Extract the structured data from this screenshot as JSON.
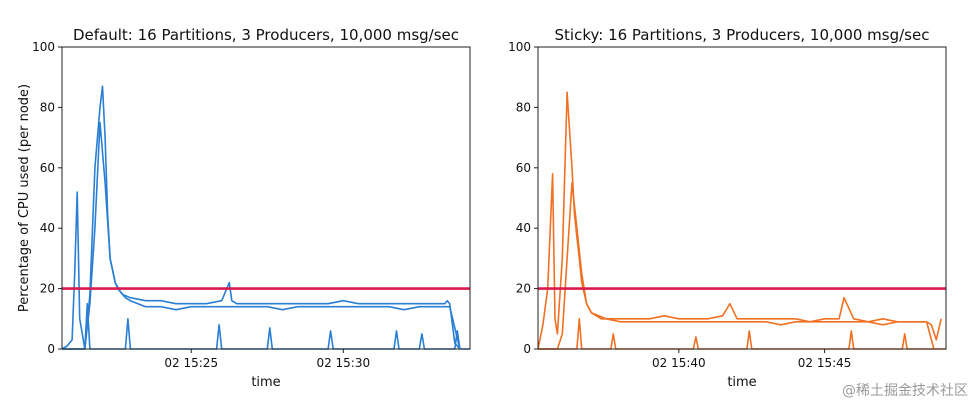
{
  "colors": {
    "threshold": "#d81b4f"
  },
  "watermark": "@稀土掘金技术社区",
  "shared_ylabel": "Percentage of CPU used (per node)",
  "chart_data": [
    {
      "type": "line",
      "title": "Default: 16 Partitions, 3 Producers, 10,000 msg/sec",
      "xlabel": "time",
      "ylabel": "Percentage of CPU used (per node)",
      "ylim": [
        0,
        100
      ],
      "yticks": [
        0,
        20,
        40,
        60,
        80,
        100
      ],
      "xlim": [
        "02 15:20:45",
        "02 15:34:10"
      ],
      "xticks": [
        "02 15:25",
        "02 15:30"
      ],
      "color": "#2a7fd4",
      "threshold": 20,
      "series": [
        {
          "x": [
            "02 15:20:45",
            "02 15:20:55",
            "02 15:21:05",
            "02 15:21:10",
            "02 15:21:15",
            "02 15:21:20",
            "02 15:21:25",
            "02 15:21:30",
            "02 15:21:40",
            "02 15:21:50",
            "02 15:22:00",
            "02 15:22:05",
            "02 15:22:10",
            "02 15:22:15",
            "02 15:22:20",
            "02 15:22:25",
            "02 15:22:30",
            "02 15:22:35",
            "02 15:22:45",
            "02 15:23:00",
            "02 15:23:30",
            "02 15:24:00",
            "02 15:24:30",
            "02 15:25:00",
            "02 15:25:30",
            "02 15:26:00",
            "02 15:26:15",
            "02 15:26:20",
            "02 15:26:30",
            "02 15:27:00",
            "02 15:27:30",
            "02 15:28:00",
            "02 15:28:30",
            "02 15:29:00",
            "02 15:29:30",
            "02 15:30:00",
            "02 15:30:30",
            "02 15:31:00",
            "02 15:31:30",
            "02 15:32:00",
            "02 15:32:30",
            "02 15:33:00",
            "02 15:33:20",
            "02 15:33:25",
            "02 15:33:30",
            "02 15:33:40",
            "02 15:33:50"
          ],
          "y": [
            0,
            1,
            3,
            25,
            52,
            10,
            5,
            0,
            18,
            60,
            80,
            87,
            70,
            45,
            30,
            26,
            22,
            20,
            18,
            17,
            16,
            16,
            15,
            15,
            15,
            16,
            22,
            16,
            15,
            15,
            15,
            15,
            15,
            15,
            15,
            16,
            15,
            15,
            15,
            15,
            15,
            15,
            15,
            16,
            15,
            2,
            0
          ]
        },
        {
          "x": [
            "02 15:20:45",
            "02 15:21:00",
            "02 15:21:30",
            "02 15:21:40",
            "02 15:21:50",
            "02 15:22:00",
            "02 15:22:10",
            "02 15:22:20",
            "02 15:22:30",
            "02 15:22:40",
            "02 15:22:50",
            "02 15:23:00",
            "02 15:23:30",
            "02 15:24:00",
            "02 15:24:30",
            "02 15:25:00",
            "02 15:25:30",
            "02 15:26:00",
            "02 15:26:30",
            "02 15:27:00",
            "02 15:27:30",
            "02 15:28:00",
            "02 15:28:30",
            "02 15:29:00",
            "02 15:29:30",
            "02 15:30:00",
            "02 15:30:30",
            "02 15:31:00",
            "02 15:31:30",
            "02 15:32:00",
            "02 15:32:30",
            "02 15:33:00",
            "02 15:33:30",
            "02 15:33:50"
          ],
          "y": [
            0,
            0,
            0,
            15,
            40,
            75,
            55,
            30,
            22,
            19,
            17,
            16,
            14,
            14,
            13,
            14,
            14,
            14,
            14,
            14,
            14,
            13,
            14,
            14,
            14,
            14,
            14,
            14,
            14,
            13,
            14,
            14,
            14,
            0
          ]
        },
        {
          "x": [
            "02 15:20:45",
            "02 15:21:30",
            "02 15:21:35",
            "02 15:21:40",
            "02 15:22:30",
            "02 15:22:50",
            "02 15:22:55",
            "02 15:23:00",
            "02 15:25:00",
            "02 15:25:50",
            "02 15:25:55",
            "02 15:26:00",
            "02 15:27:30",
            "02 15:27:35",
            "02 15:27:40",
            "02 15:29:30",
            "02 15:29:35",
            "02 15:29:40",
            "02 15:31:40",
            "02 15:31:45",
            "02 15:31:50",
            "02 15:32:30",
            "02 15:32:35",
            "02 15:32:40",
            "02 15:33:40",
            "02 15:33:45",
            "02 15:33:50",
            "02 15:34:10"
          ],
          "y": [
            0,
            0,
            15,
            0,
            0,
            0,
            10,
            0,
            0,
            0,
            8,
            0,
            0,
            7,
            0,
            0,
            6,
            0,
            0,
            6,
            0,
            0,
            5,
            0,
            0,
            6,
            0,
            0
          ]
        }
      ]
    },
    {
      "type": "line",
      "title": "Sticky: 16 Partitions, 3 Producers, 10,000 msg/sec",
      "xlabel": "time",
      "ylim": [
        0,
        100
      ],
      "yticks": [
        0,
        20,
        40,
        60,
        80,
        100
      ],
      "xlim": [
        "02 15:35:10",
        "02 15:49:10"
      ],
      "xticks": [
        "02 15:40",
        "02 15:45"
      ],
      "color": "#f07124",
      "threshold": 20,
      "series": [
        {
          "x": [
            "02 15:35:10",
            "02 15:35:20",
            "02 15:35:30",
            "02 15:35:40",
            "02 15:35:45",
            "02 15:35:50",
            "02 15:36:00",
            "02 15:36:10",
            "02 15:36:20",
            "02 15:36:25",
            "02 15:36:30",
            "02 15:36:35",
            "02 15:36:40",
            "02 15:36:50",
            "02 15:37:00",
            "02 15:37:10",
            "02 15:37:20",
            "02 15:37:30",
            "02 15:38:00",
            "02 15:38:30",
            "02 15:39:00",
            "02 15:39:30",
            "02 15:40:00",
            "02 15:40:30",
            "02 15:41:00",
            "02 15:41:30",
            "02 15:41:45",
            "02 15:42:00",
            "02 15:42:30",
            "02 15:43:00",
            "02 15:43:30",
            "02 15:44:00",
            "02 15:44:30",
            "02 15:45:00",
            "02 15:45:30",
            "02 15:45:40",
            "02 15:46:00",
            "02 15:46:30",
            "02 15:47:00",
            "02 15:47:30",
            "02 15:48:00",
            "02 15:48:30",
            "02 15:48:40",
            "02 15:48:50",
            "02 15:49:00"
          ],
          "y": [
            0,
            8,
            20,
            58,
            10,
            5,
            30,
            85,
            60,
            45,
            37,
            30,
            22,
            15,
            12,
            11,
            10,
            10,
            10,
            10,
            10,
            11,
            10,
            10,
            10,
            11,
            15,
            10,
            10,
            10,
            10,
            10,
            9,
            10,
            10,
            17,
            10,
            9,
            10,
            9,
            9,
            9,
            8,
            3,
            10
          ]
        },
        {
          "x": [
            "02 15:35:10",
            "02 15:35:30",
            "02 15:35:50",
            "02 15:36:00",
            "02 15:36:10",
            "02 15:36:20",
            "02 15:36:30",
            "02 15:36:40",
            "02 15:36:50",
            "02 15:37:00",
            "02 15:37:30",
            "02 15:38:00",
            "02 15:38:30",
            "02 15:39:00",
            "02 15:39:30",
            "02 15:40:00",
            "02 15:40:30",
            "02 15:41:00",
            "02 15:41:30",
            "02 15:42:00",
            "02 15:42:30",
            "02 15:43:00",
            "02 15:43:30",
            "02 15:44:00",
            "02 15:44:30",
            "02 15:45:00",
            "02 15:45:30",
            "02 15:46:00",
            "02 15:46:30",
            "02 15:47:00",
            "02 15:47:30",
            "02 15:48:00",
            "02 15:48:30",
            "02 15:48:45"
          ],
          "y": [
            0,
            0,
            0,
            5,
            30,
            55,
            40,
            25,
            15,
            12,
            10,
            9,
            9,
            9,
            9,
            9,
            9,
            9,
            9,
            9,
            9,
            9,
            8,
            9,
            9,
            9,
            9,
            9,
            9,
            8,
            9,
            9,
            9,
            0
          ]
        },
        {
          "x": [
            "02 15:35:10",
            "02 15:36:30",
            "02 15:36:35",
            "02 15:36:40",
            "02 15:37:40",
            "02 15:37:45",
            "02 15:37:50",
            "02 15:40:30",
            "02 15:40:35",
            "02 15:40:40",
            "02 15:42:20",
            "02 15:42:25",
            "02 15:42:30",
            "02 15:45:50",
            "02 15:45:55",
            "02 15:46:00",
            "02 15:47:40",
            "02 15:47:45",
            "02 15:47:50",
            "02 15:49:10"
          ],
          "y": [
            0,
            0,
            10,
            0,
            0,
            5,
            0,
            0,
            4,
            0,
            0,
            6,
            0,
            0,
            6,
            0,
            0,
            5,
            0,
            0
          ]
        }
      ]
    }
  ]
}
